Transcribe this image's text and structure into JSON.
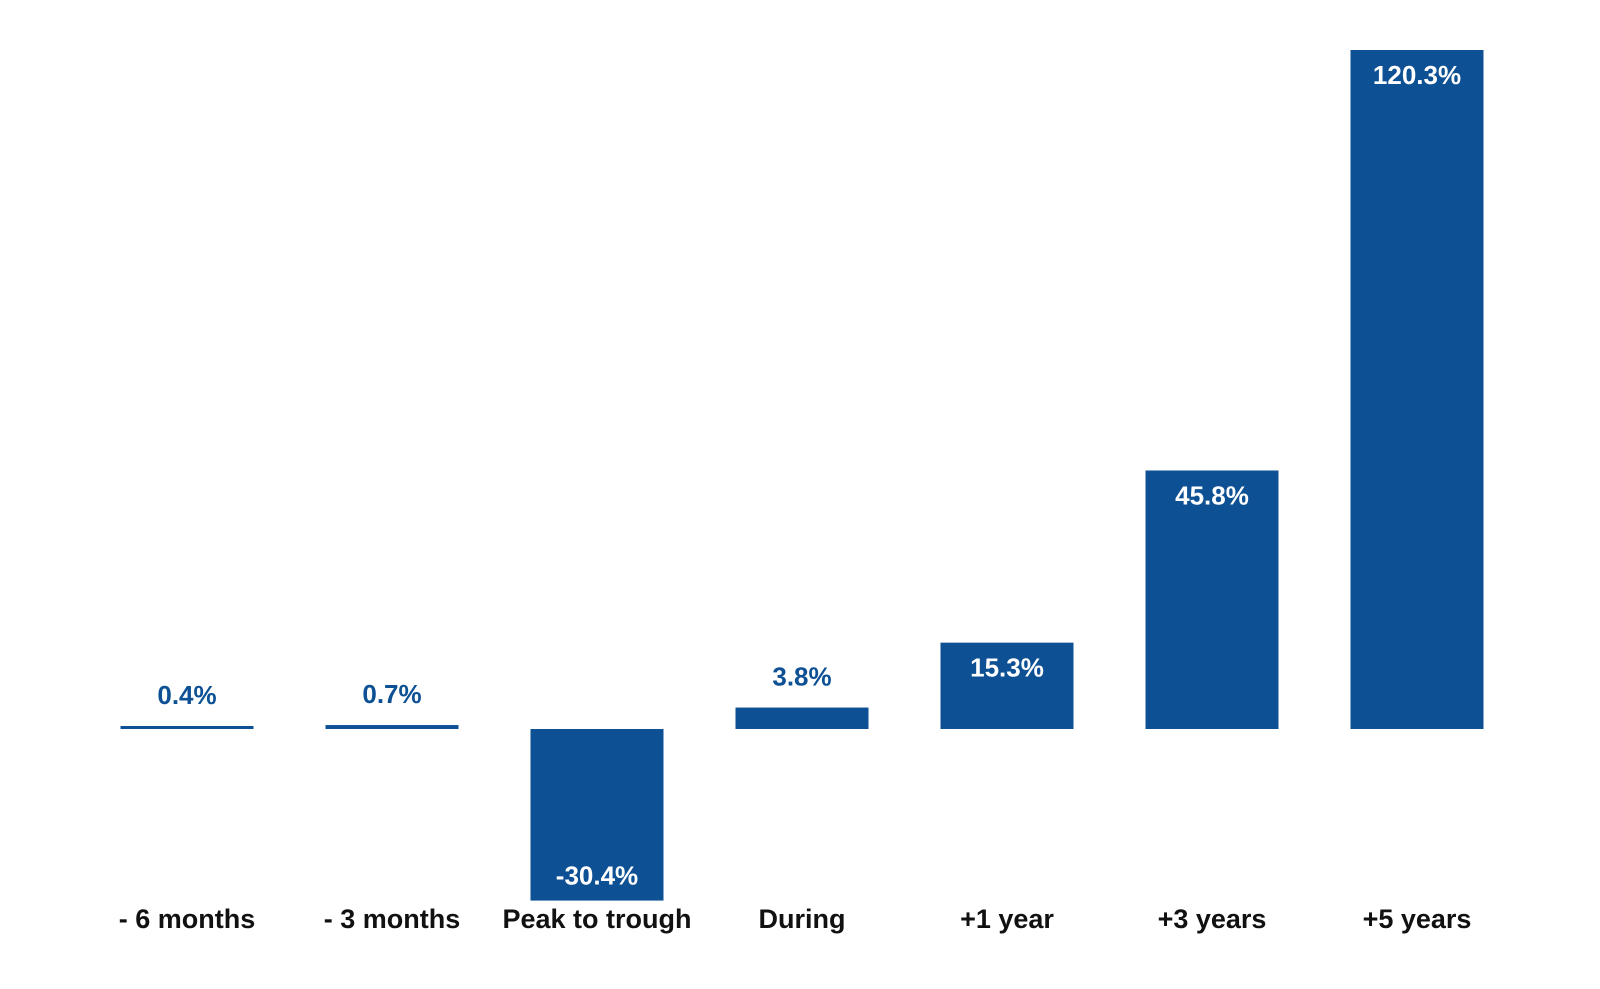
{
  "chart_data": {
    "type": "bar",
    "categories": [
      "- 6 months",
      "- 3 months",
      "Peak to trough",
      "During",
      "+1 year",
      "+3 years",
      "+5 years"
    ],
    "values": [
      0.4,
      0.7,
      -30.4,
      3.8,
      15.3,
      45.8,
      120.3
    ],
    "value_labels": [
      "0.4%",
      "0.7%",
      "-30.4%",
      "3.8%",
      "15.3%",
      "45.8%",
      "120.3%"
    ],
    "title": "",
    "xlabel": "",
    "ylabel": "",
    "ylim": [
      -30.4,
      120.3
    ],
    "grid": false,
    "legend": "none",
    "colors": {
      "bar": "#0d5194",
      "label_inside": "#ffffff",
      "label_outside": "#0d5194",
      "category_text": "#111111"
    }
  }
}
